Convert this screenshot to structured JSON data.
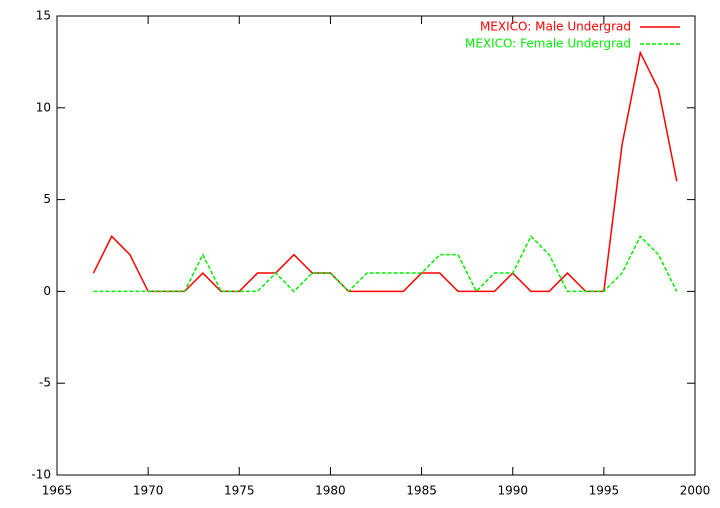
{
  "chart_data": {
    "type": "line",
    "x": [
      1967,
      1968,
      1969,
      1970,
      1971,
      1972,
      1973,
      1974,
      1975,
      1976,
      1977,
      1978,
      1979,
      1980,
      1981,
      1982,
      1983,
      1984,
      1985,
      1986,
      1987,
      1988,
      1989,
      1990,
      1991,
      1992,
      1993,
      1994,
      1995,
      1996,
      1997,
      1998,
      1999
    ],
    "series": [
      {
        "name": "MEXICO: Male Undergrad",
        "color": "#ff0000",
        "dash": false,
        "values": [
          1,
          3,
          2,
          0,
          0,
          0,
          1,
          0,
          0,
          1,
          1,
          2,
          1,
          1,
          0,
          0,
          0,
          0,
          1,
          1,
          0,
          0,
          0,
          1,
          0,
          0,
          1,
          0,
          0,
          8,
          13,
          11,
          6
        ]
      },
      {
        "name": "MEXICO: Female Undergrad",
        "color": "#00ee00",
        "dash": true,
        "values": [
          0,
          0,
          0,
          0,
          0,
          0,
          2,
          0,
          0,
          0,
          1,
          0,
          1,
          1,
          0,
          1,
          1,
          1,
          1,
          2,
          2,
          0,
          1,
          1,
          3,
          2,
          0,
          0,
          0,
          1,
          3,
          2,
          0
        ]
      }
    ],
    "xlim": [
      1965,
      2000
    ],
    "xticks": [
      1965,
      1970,
      1975,
      1980,
      1985,
      1990,
      1995,
      2000
    ],
    "ylim": [
      -10,
      15
    ],
    "yticks": [
      -10,
      -5,
      0,
      5,
      10,
      15
    ],
    "grid": false,
    "legend": "top-right"
  }
}
